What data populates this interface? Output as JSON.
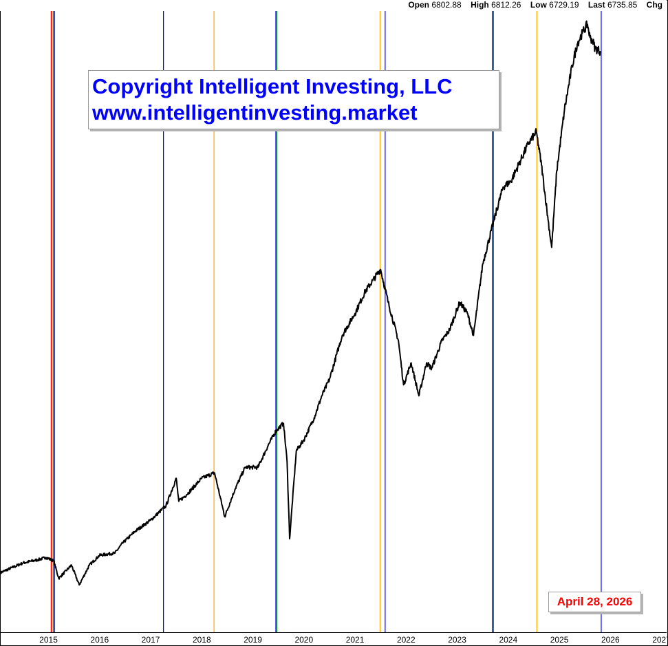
{
  "quote": {
    "open_label": "Open",
    "open_value": "6802.88",
    "high_label": "High",
    "high_value": "6812.26",
    "low_label": "Low",
    "low_value": "6729.19",
    "last_label": "Last",
    "last_value": "6735.85",
    "chg_label": "Chg"
  },
  "copyright": {
    "line1": "Copyright Intelligent Investing, LLC",
    "line2": "www.intelligentinvesting.market"
  },
  "date_badge": "April 28, 2026",
  "colors": {
    "price": "#000000",
    "blue_cycle": "#0000ff",
    "orange_cycle": "#ffa500",
    "red_cycle": "#ff0000",
    "green_cycle": "#008000",
    "date_text": "#ff0000",
    "copyright_text": "#0000ff"
  },
  "chart_data": {
    "type": "line",
    "title": "",
    "xlabel": "",
    "ylabel": "",
    "x_ticks": [
      "2015",
      "2016",
      "2017",
      "2018",
      "2019",
      "2020",
      "2021",
      "2022",
      "2023",
      "2024",
      "2025",
      "2026",
      "2027"
    ],
    "xlim": [
      2014.55,
      2027.6
    ],
    "ylim": [
      1450,
      7100
    ],
    "grid": false,
    "legend": "none",
    "series": [
      {
        "x": [
          2014.55,
          2014.8,
          2015.0,
          2015.3,
          2015.45,
          2015.6,
          2015.7,
          2015.95,
          2016.1,
          2016.3,
          2016.5,
          2016.8,
          2016.95,
          2017.2,
          2017.5,
          2017.8,
          2018.0,
          2018.05,
          2018.2,
          2018.5,
          2018.75,
          2018.95,
          2019.15,
          2019.35,
          2019.6,
          2019.8,
          2019.95,
          2020.1,
          2020.17,
          2020.22,
          2020.35,
          2020.5,
          2020.7,
          2020.85,
          2021.0,
          2021.25,
          2021.5,
          2021.7,
          2021.85,
          2022.0,
          2022.15,
          2022.35,
          2022.45,
          2022.6,
          2022.75,
          2022.9,
          2023.0,
          2023.2,
          2023.35,
          2023.55,
          2023.7,
          2023.82,
          2024.0,
          2024.25,
          2024.4,
          2024.55,
          2024.7,
          2024.9,
          2025.05,
          2025.15,
          2025.28,
          2025.35,
          2025.45,
          2025.6,
          2025.75,
          2025.85,
          2025.95,
          2026.05,
          2026.1,
          2026.15,
          2026.2,
          2026.3
        ],
        "y": [
          1990,
          2040,
          2080,
          2110,
          2130,
          2100,
          1940,
          2060,
          1880,
          2060,
          2150,
          2170,
          2260,
          2370,
          2470,
          2600,
          2850,
          2640,
          2700,
          2850,
          2900,
          2500,
          2750,
          2950,
          2950,
          3150,
          3280,
          3350,
          3000,
          2300,
          3100,
          3200,
          3400,
          3600,
          3750,
          4150,
          4350,
          4550,
          4650,
          4750,
          4450,
          4100,
          3700,
          3900,
          3600,
          3900,
          3850,
          4100,
          4200,
          4450,
          4350,
          4150,
          4800,
          5250,
          5500,
          5550,
          5700,
          5900,
          6000,
          5700,
          5200,
          4950,
          5650,
          6200,
          6600,
          6800,
          6900,
          6980,
          6860,
          6830,
          6760,
          6736
        ]
      }
    ],
    "cycle_lines": [
      {
        "date": "2015.56",
        "color": "red"
      },
      {
        "date": "2015.57",
        "color": "orange"
      },
      {
        "date": "2015.60",
        "color": "blue"
      },
      {
        "date": "2015.62",
        "color": "green"
      },
      {
        "date": "2017.75",
        "color": "blue"
      },
      {
        "date": "2018.74",
        "color": "orange"
      },
      {
        "date": "2019.95",
        "color": "blue"
      },
      {
        "date": "2019.97",
        "color": "green"
      },
      {
        "date": "2021.99",
        "color": "orange"
      },
      {
        "date": "2022.09",
        "color": "blue"
      },
      {
        "date": "2024.19",
        "color": "blue"
      },
      {
        "date": "2024.21",
        "color": "green"
      },
      {
        "date": "2025.06",
        "color": "orange"
      },
      {
        "date": "2026.32",
        "color": "blue"
      }
    ]
  }
}
